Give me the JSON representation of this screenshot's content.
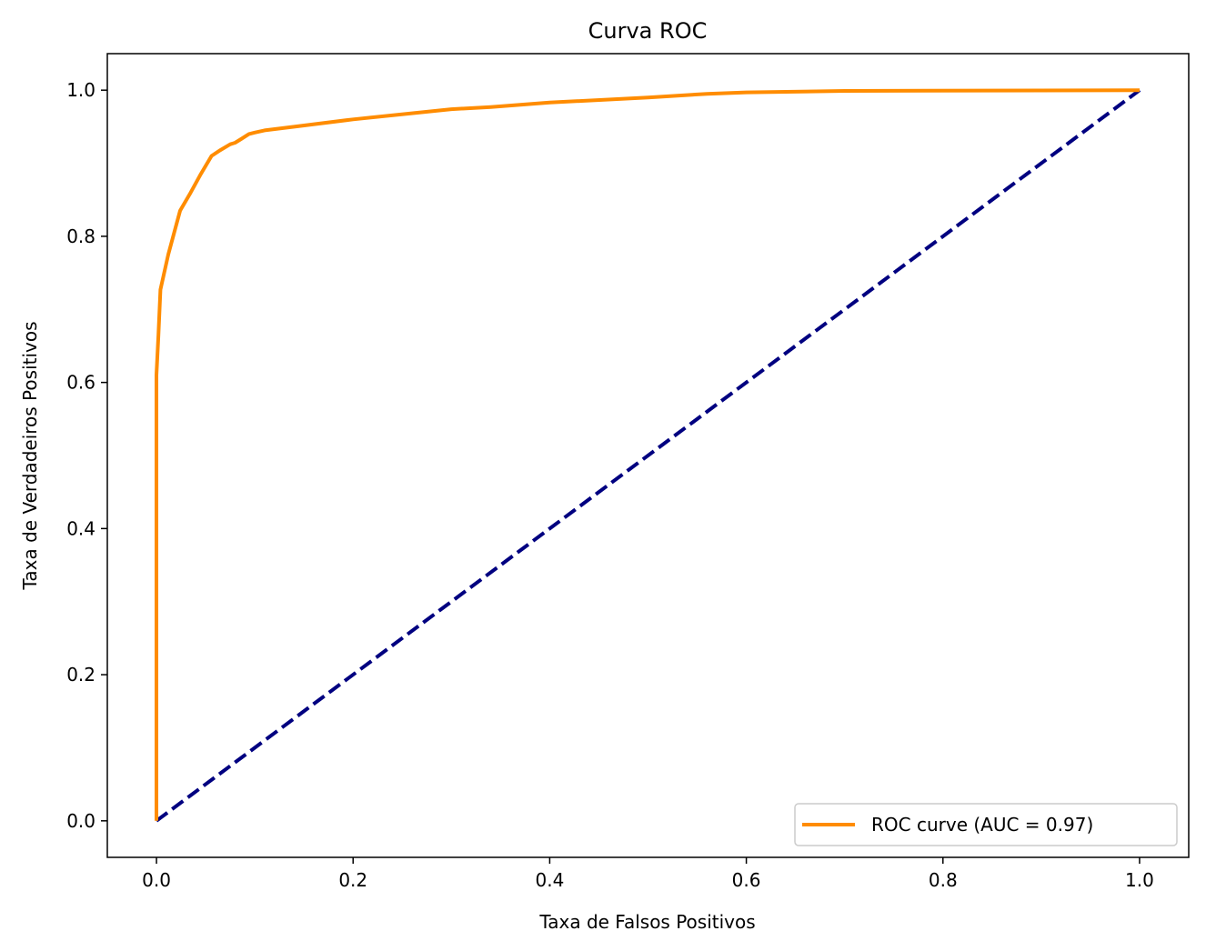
{
  "chart_data": {
    "type": "line",
    "title": "Curva ROC",
    "xlabel": "Taxa de Falsos Positivos",
    "ylabel": "Taxa de Verdadeiros Positivos",
    "xlim": [
      -0.05,
      1.05
    ],
    "ylim": [
      -0.05,
      1.05
    ],
    "xticks": [
      0.0,
      0.2,
      0.4,
      0.6,
      0.8,
      1.0
    ],
    "yticks": [
      0.0,
      0.2,
      0.4,
      0.6,
      0.8,
      1.0
    ],
    "xtick_labels": [
      "0.0",
      "0.2",
      "0.4",
      "0.6",
      "0.8",
      "1.0"
    ],
    "ytick_labels": [
      "0.0",
      "0.2",
      "0.4",
      "0.6",
      "0.8",
      "1.0"
    ],
    "grid": false,
    "legend_position": "lower right",
    "series": [
      {
        "name": "ROC curve (AUC = 0.97)",
        "color": "#ff8c00",
        "style": "solid",
        "x": [
          0.0,
          0.0,
          0.002,
          0.004,
          0.012,
          0.024,
          0.034,
          0.045,
          0.056,
          0.065,
          0.075,
          0.08,
          0.086,
          0.094,
          0.1,
          0.11,
          0.14,
          0.2,
          0.3,
          0.34,
          0.4,
          0.5,
          0.56,
          0.6,
          0.7,
          1.0
        ],
        "y": [
          0.0,
          0.61,
          0.665,
          0.727,
          0.775,
          0.835,
          0.858,
          0.885,
          0.91,
          0.918,
          0.926,
          0.928,
          0.933,
          0.94,
          0.942,
          0.945,
          0.95,
          0.96,
          0.974,
          0.977,
          0.983,
          0.99,
          0.995,
          0.997,
          0.999,
          1.0
        ]
      },
      {
        "name": "",
        "color": "#000080",
        "style": "dashed",
        "x": [
          0.0,
          1.0
        ],
        "y": [
          0.0,
          1.0
        ]
      }
    ],
    "legend": [
      "ROC curve (AUC = 0.97)"
    ]
  }
}
